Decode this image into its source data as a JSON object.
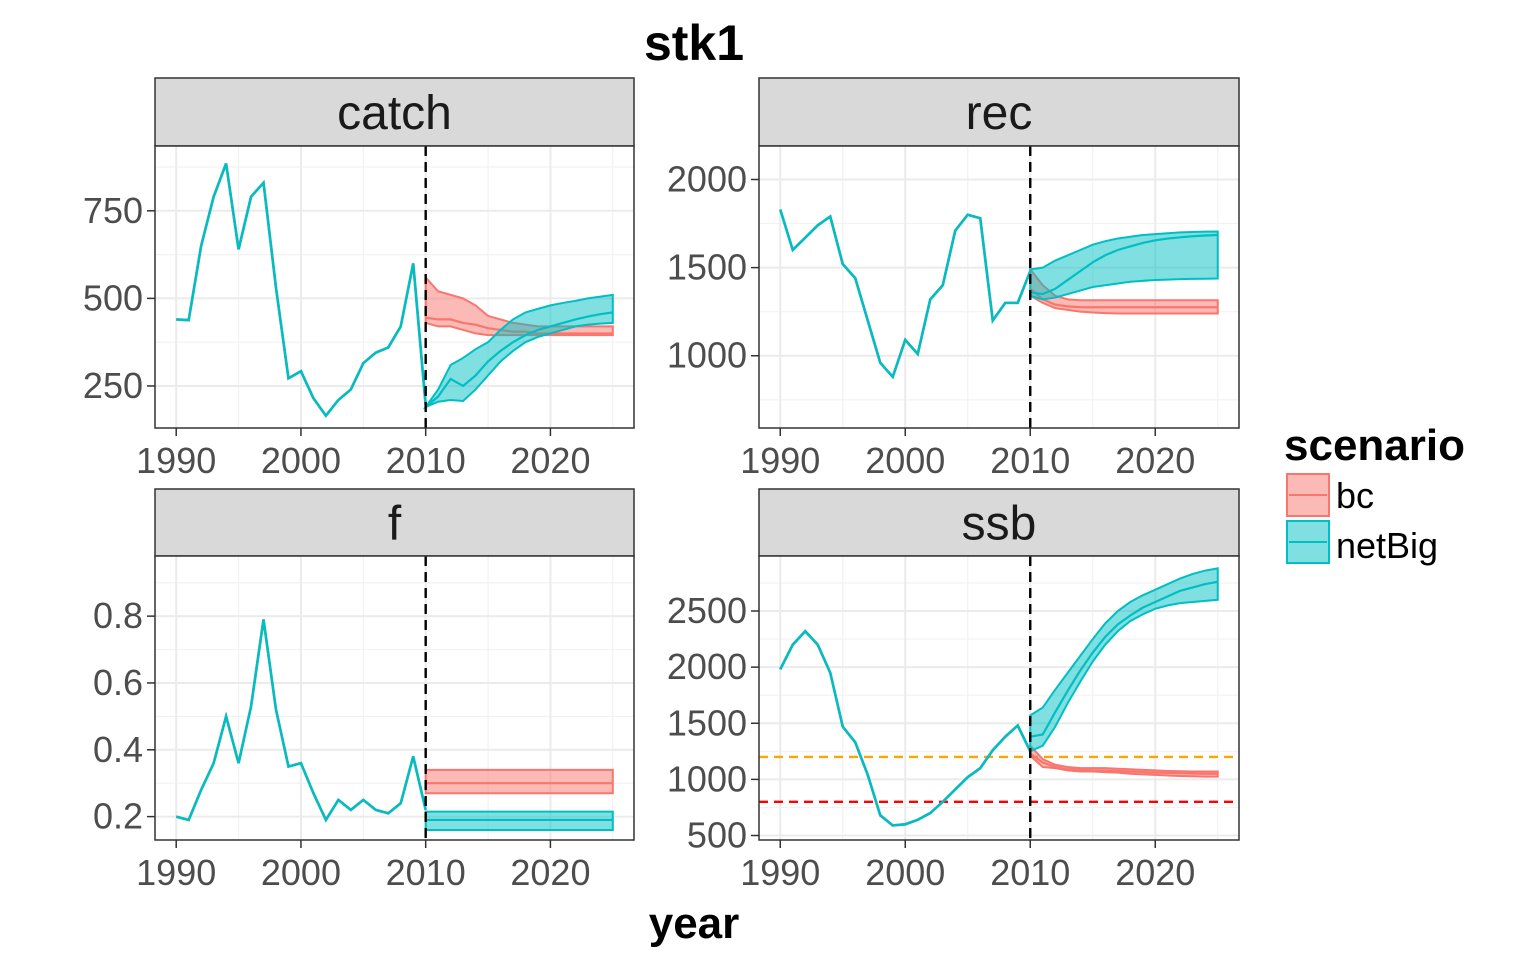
{
  "figure": {
    "title": "stk1",
    "xlabel": "year"
  },
  "legend": {
    "title": "scenario",
    "items": [
      {
        "label": "bc",
        "line": "#F8766D",
        "fill": "#F8766D"
      },
      {
        "label": "netBig",
        "line": "#00BFC4",
        "fill": "#00BFC4"
      }
    ]
  },
  "chart_data": [
    {
      "type": "line",
      "panel": "catch",
      "title": "catch",
      "xlim": [
        1988.3,
        2026.7
      ],
      "ylim": [
        130,
        935
      ],
      "xticks": [
        1990,
        2000,
        2010,
        2020
      ],
      "yticks": [
        250,
        500,
        750
      ],
      "vline": {
        "x": 2010,
        "color": "#000000"
      },
      "hlines": [],
      "history": {
        "x": [
          1990,
          1991,
          1992,
          1993,
          1994,
          1995,
          1996,
          1997,
          1998,
          1999,
          2000,
          2001,
          2002,
          2003,
          2004,
          2005,
          2006,
          2007,
          2008,
          2009,
          2010
        ],
        "y": [
          440,
          438,
          650,
          790,
          885,
          640,
          790,
          830,
          530,
          272,
          292,
          215,
          165,
          210,
          240,
          315,
          345,
          360,
          420,
          600,
          195
        ]
      },
      "series": [
        {
          "name": "bc",
          "x": [
            2010,
            2011,
            2012,
            2013,
            2014,
            2015,
            2016,
            2017,
            2018,
            2019,
            2020,
            2021,
            2022,
            2023,
            2024,
            2025
          ],
          "upper": [
            560,
            520,
            510,
            500,
            480,
            450,
            440,
            430,
            425,
            420,
            420,
            420,
            420,
            420,
            420,
            420
          ],
          "median": [
            445,
            440,
            440,
            430,
            425,
            415,
            410,
            405,
            405,
            400,
            400,
            400,
            400,
            400,
            400,
            400
          ],
          "lower": [
            430,
            420,
            420,
            410,
            400,
            395,
            395,
            395,
            395,
            395,
            395,
            395,
            395,
            395,
            395,
            395
          ]
        },
        {
          "name": "netBig",
          "x": [
            2010,
            2011,
            2012,
            2013,
            2014,
            2015,
            2016,
            2017,
            2018,
            2019,
            2020,
            2021,
            2022,
            2023,
            2024,
            2025
          ],
          "upper": [
            190,
            240,
            310,
            330,
            355,
            375,
            410,
            440,
            460,
            470,
            480,
            487,
            493,
            500,
            505,
            510
          ],
          "median": [
            190,
            220,
            270,
            250,
            280,
            320,
            350,
            375,
            395,
            410,
            420,
            430,
            440,
            448,
            455,
            460
          ],
          "lower": [
            190,
            205,
            210,
            207,
            240,
            280,
            320,
            350,
            375,
            390,
            400,
            410,
            420,
            425,
            428,
            430
          ]
        }
      ]
    },
    {
      "type": "line",
      "panel": "rec",
      "title": "rec",
      "xlim": [
        1988.3,
        2026.7
      ],
      "ylim": [
        590,
        2190
      ],
      "xticks": [
        1990,
        2000,
        2010,
        2020
      ],
      "yticks": [
        1000,
        1500,
        2000
      ],
      "vline": {
        "x": 2010,
        "color": "#000000"
      },
      "hlines": [],
      "history": {
        "x": [
          1990,
          1991,
          1992,
          1993,
          1994,
          1995,
          1996,
          1997,
          1998,
          1999,
          2000,
          2001,
          2002,
          2003,
          2004,
          2005,
          2006,
          2007,
          2008,
          2009,
          2010
        ],
        "y": [
          1830,
          1600,
          1670,
          1740,
          1790,
          1520,
          1440,
          1200,
          960,
          880,
          1090,
          1010,
          1320,
          1400,
          1710,
          1800,
          1780,
          1200,
          1300,
          1300,
          1480
        ]
      },
      "series": [
        {
          "name": "bc",
          "x": [
            2010,
            2011,
            2012,
            2013,
            2014,
            2015,
            2016,
            2017,
            2018,
            2019,
            2020,
            2021,
            2022,
            2023,
            2024,
            2025
          ],
          "upper": [
            1490,
            1400,
            1340,
            1320,
            1315,
            1315,
            1315,
            1315,
            1315,
            1315,
            1315,
            1315,
            1315,
            1315,
            1315,
            1315
          ],
          "median": [
            1380,
            1320,
            1290,
            1280,
            1275,
            1275,
            1275,
            1275,
            1275,
            1275,
            1275,
            1275,
            1275,
            1275,
            1275,
            1275
          ],
          "lower": [
            1340,
            1300,
            1270,
            1260,
            1250,
            1245,
            1242,
            1240,
            1240,
            1240,
            1240,
            1240,
            1240,
            1240,
            1240,
            1240
          ]
        },
        {
          "name": "netBig",
          "x": [
            2010,
            2011,
            2012,
            2013,
            2014,
            2015,
            2016,
            2017,
            2018,
            2019,
            2020,
            2021,
            2022,
            2023,
            2024,
            2025
          ],
          "upper": [
            1490,
            1500,
            1540,
            1570,
            1600,
            1630,
            1650,
            1665,
            1675,
            1685,
            1690,
            1695,
            1700,
            1702,
            1704,
            1705
          ],
          "median": [
            1360,
            1350,
            1380,
            1430,
            1480,
            1530,
            1570,
            1600,
            1620,
            1640,
            1655,
            1665,
            1672,
            1678,
            1682,
            1685
          ],
          "lower": [
            1340,
            1320,
            1330,
            1350,
            1370,
            1390,
            1400,
            1410,
            1420,
            1425,
            1430,
            1432,
            1435,
            1436,
            1437,
            1438
          ]
        }
      ]
    },
    {
      "type": "line",
      "panel": "f",
      "title": "f",
      "xlim": [
        1988.3,
        2026.7
      ],
      "ylim": [
        0.13,
        0.98
      ],
      "xticks": [
        1990,
        2000,
        2010,
        2020
      ],
      "yticks": [
        0.2,
        0.4,
        0.6,
        0.8
      ],
      "ytick_labels": [
        "0.2",
        "0.4",
        "0.6",
        "0.8"
      ],
      "vline": {
        "x": 2010,
        "color": "#000000"
      },
      "hlines": [],
      "history": {
        "x": [
          1990,
          1991,
          1992,
          1993,
          1994,
          1995,
          1996,
          1997,
          1998,
          1999,
          2000,
          2001,
          2002,
          2003,
          2004,
          2005,
          2006,
          2007,
          2008,
          2009,
          2010
        ],
        "y": [
          0.2,
          0.19,
          0.28,
          0.36,
          0.5,
          0.36,
          0.53,
          0.79,
          0.52,
          0.35,
          0.36,
          0.27,
          0.19,
          0.25,
          0.22,
          0.25,
          0.22,
          0.21,
          0.24,
          0.38,
          0.22
        ]
      },
      "series": [
        {
          "name": "bc",
          "x": [
            2010,
            2025
          ],
          "upper": [
            0.34,
            0.34
          ],
          "median": [
            0.3,
            0.3
          ],
          "lower": [
            0.27,
            0.27
          ]
        },
        {
          "name": "netBig",
          "x": [
            2010,
            2025
          ],
          "upper": [
            0.215,
            0.215
          ],
          "median": [
            0.19,
            0.19
          ],
          "lower": [
            0.16,
            0.16
          ]
        }
      ]
    },
    {
      "type": "line",
      "panel": "ssb",
      "title": "ssb",
      "xlim": [
        1988.3,
        2026.7
      ],
      "ylim": [
        460,
        2990
      ],
      "xticks": [
        1990,
        2000,
        2010,
        2020
      ],
      "yticks": [
        500,
        1000,
        1500,
        2000,
        2500
      ],
      "vline": {
        "x": 2010,
        "color": "#000000"
      },
      "hlines": [
        {
          "y": 1200,
          "color": "#FFA500"
        },
        {
          "y": 800,
          "color": "#FF0000"
        }
      ],
      "history": {
        "x": [
          1990,
          1991,
          1992,
          1993,
          1994,
          1995,
          1996,
          1997,
          1998,
          1999,
          2000,
          2001,
          2002,
          2003,
          2004,
          2005,
          2006,
          2007,
          2008,
          2009,
          2010
        ],
        "y": [
          1980,
          2200,
          2320,
          2200,
          1950,
          1470,
          1330,
          1040,
          680,
          590,
          600,
          640,
          700,
          800,
          910,
          1020,
          1100,
          1260,
          1380,
          1480,
          1250
        ]
      },
      "series": [
        {
          "name": "bc",
          "x": [
            2010,
            2011,
            2012,
            2013,
            2014,
            2015,
            2016,
            2017,
            2018,
            2019,
            2020,
            2021,
            2022,
            2023,
            2024,
            2025
          ],
          "upper": [
            1300,
            1180,
            1130,
            1110,
            1100,
            1100,
            1100,
            1095,
            1090,
            1085,
            1080,
            1075,
            1072,
            1070,
            1070,
            1070
          ],
          "median": [
            1230,
            1150,
            1110,
            1090,
            1085,
            1080,
            1078,
            1075,
            1070,
            1065,
            1060,
            1058,
            1055,
            1052,
            1050,
            1050
          ],
          "lower": [
            1210,
            1110,
            1100,
            1080,
            1070,
            1070,
            1065,
            1060,
            1050,
            1045,
            1040,
            1035,
            1030,
            1028,
            1025,
            1025
          ]
        },
        {
          "name": "netBig",
          "x": [
            2010,
            2011,
            2012,
            2013,
            2014,
            2015,
            2016,
            2017,
            2018,
            2019,
            2020,
            2021,
            2022,
            2023,
            2024,
            2025
          ],
          "upper": [
            1570,
            1640,
            1800,
            1950,
            2100,
            2250,
            2390,
            2500,
            2580,
            2640,
            2690,
            2740,
            2790,
            2830,
            2860,
            2880
          ],
          "median": [
            1380,
            1400,
            1600,
            1790,
            1970,
            2130,
            2270,
            2380,
            2460,
            2530,
            2580,
            2630,
            2680,
            2710,
            2740,
            2760
          ],
          "lower": [
            1250,
            1300,
            1470,
            1680,
            1870,
            2050,
            2200,
            2320,
            2410,
            2470,
            2520,
            2550,
            2570,
            2580,
            2590,
            2600
          ]
        }
      ]
    }
  ]
}
